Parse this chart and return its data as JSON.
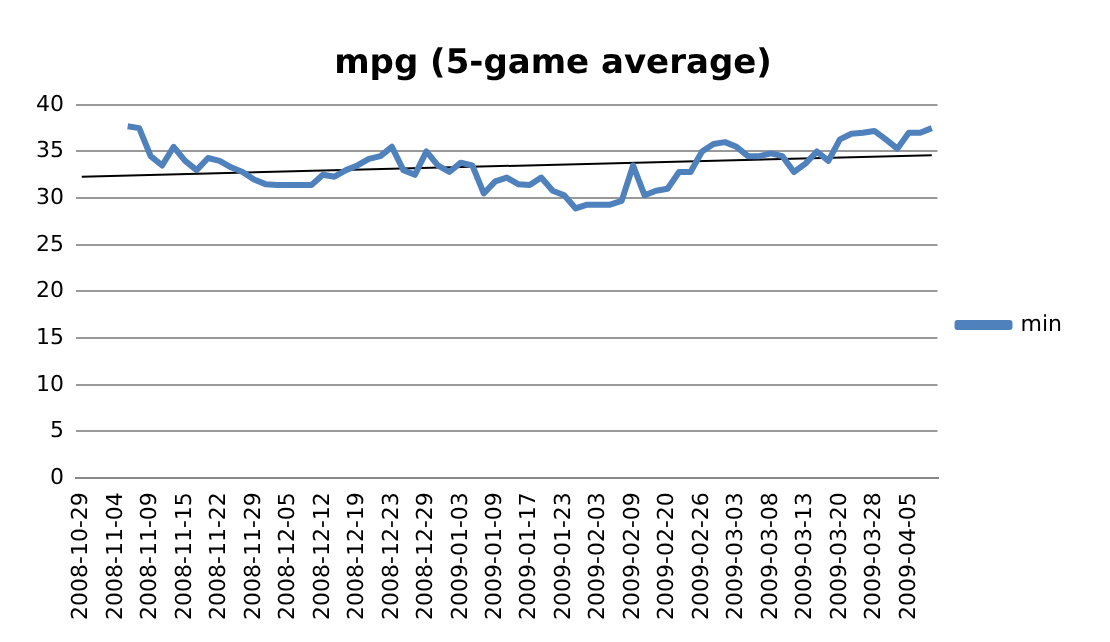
{
  "chart_data": {
    "type": "line",
    "title": "mpg (5-game average)",
    "categories": [
      "2008-10-29",
      null,
      null,
      "2008-11-04",
      null,
      null,
      "2008-11-09",
      null,
      null,
      "2008-11-15",
      null,
      null,
      "2008-11-22",
      null,
      null,
      "2008-11-29",
      null,
      null,
      "2008-12-05",
      null,
      null,
      "2008-12-12",
      null,
      null,
      "2008-12-19",
      null,
      null,
      "2008-12-23",
      null,
      null,
      "2008-12-29",
      null,
      null,
      "2009-01-03",
      null,
      null,
      "2009-01-09",
      null,
      null,
      "2009-01-17",
      null,
      null,
      "2009-01-23",
      null,
      null,
      "2009-02-03",
      null,
      null,
      "2009-02-09",
      null,
      null,
      "2009-02-20",
      null,
      null,
      "2009-02-26",
      null,
      null,
      "2009-03-03",
      null,
      null,
      "2009-03-08",
      null,
      null,
      "2009-03-13",
      null,
      null,
      "2009-03-20",
      null,
      null,
      "2009-03-28",
      null,
      null,
      "2009-04-05",
      null,
      null
    ],
    "series": [
      {
        "name": "min",
        "color": "#4f81bd",
        "values": [
          null,
          null,
          null,
          null,
          37.7,
          37.5,
          34.5,
          33.5,
          35.5,
          34,
          33,
          34.3,
          34,
          33.3,
          32.8,
          32,
          31.5,
          31.4,
          31.4,
          31.4,
          31.4,
          32.5,
          32.3,
          33,
          33.5,
          34.2,
          34.5,
          35.5,
          33,
          32.5,
          35,
          33.5,
          32.8,
          33.8,
          33.5,
          30.5,
          31.8,
          32.2,
          31.5,
          31.4,
          32.2,
          30.8,
          30.3,
          28.9,
          29.3,
          29.3,
          29.3,
          29.7,
          33.5,
          30.3,
          30.8,
          31,
          32.8,
          32.8,
          35,
          35.8,
          36,
          35.5,
          34.5,
          34.5,
          34.8,
          34.5,
          32.8,
          33.7,
          35,
          34,
          36.3,
          36.9,
          37,
          37.2,
          36.3,
          35.3,
          37,
          37,
          37.5
        ]
      },
      {
        "color": "#000000",
        "values": [
          32.3,
          null,
          null,
          null,
          null,
          null,
          null,
          null,
          null,
          null,
          null,
          null,
          null,
          null,
          null,
          null,
          null,
          null,
          null,
          null,
          null,
          null,
          null,
          null,
          null,
          null,
          null,
          null,
          null,
          null,
          null,
          null,
          null,
          null,
          null,
          null,
          null,
          null,
          null,
          null,
          null,
          null,
          null,
          null,
          null,
          null,
          null,
          null,
          null,
          null,
          null,
          null,
          null,
          null,
          null,
          null,
          null,
          null,
          null,
          null,
          null,
          null,
          null,
          null,
          null,
          null,
          null,
          null,
          null,
          null,
          null,
          null,
          null,
          null,
          34.6
        ]
      }
    ],
    "ylim": [
      0,
      40
    ],
    "yticks": [
      0,
      5,
      10,
      15,
      20,
      25,
      30,
      35,
      40
    ],
    "grid": "y",
    "legend": "right",
    "marker": "none",
    "line_style": "solid"
  }
}
